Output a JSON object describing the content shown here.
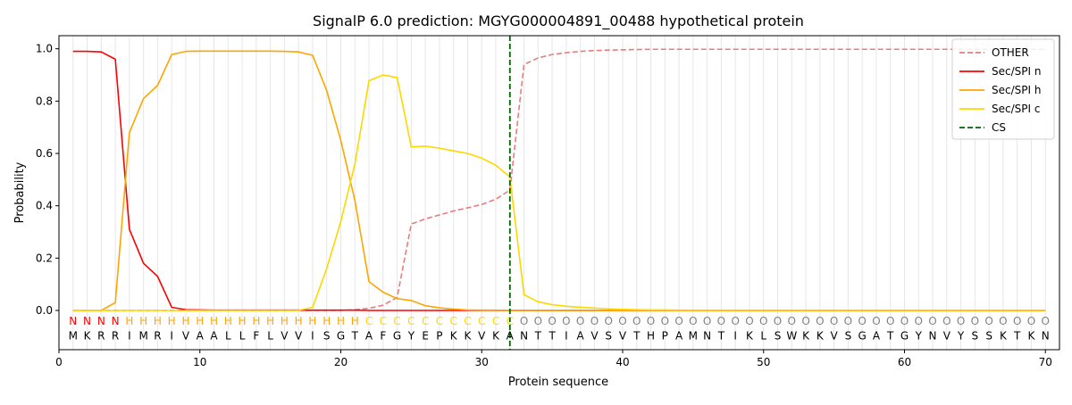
{
  "chart_data": {
    "type": "line",
    "title": "SignalP 6.0 prediction: MGYG000004891_00488 hypothetical protein",
    "xlabel": "Protein sequence",
    "ylabel": "Probability",
    "xlim": [
      0,
      71
    ],
    "ylim": [
      -0.15,
      1.05
    ],
    "x_ticks": [
      0,
      10,
      20,
      30,
      40,
      50,
      60,
      70
    ],
    "y_ticks": [
      0.0,
      0.2,
      0.4,
      0.6,
      0.8,
      1.0
    ],
    "x_tick_labels": [
      "0",
      "10",
      "20",
      "30",
      "40",
      "50",
      "60",
      "70"
    ],
    "y_tick_labels": [
      "0.0",
      "0.2",
      "0.4",
      "0.6",
      "0.8",
      "1.0"
    ],
    "grid": "vertical lines at each residue",
    "legend_position": "top-right",
    "sequence": [
      "M",
      "K",
      "R",
      "R",
      "I",
      "M",
      "R",
      "I",
      "V",
      "A",
      "A",
      "L",
      "L",
      "F",
      "L",
      "V",
      "V",
      "I",
      "S",
      "G",
      "T",
      "A",
      "F",
      "G",
      "Y",
      "E",
      "P",
      "K",
      "K",
      "V",
      "K",
      "A",
      "N",
      "T",
      "T",
      "I",
      "A",
      "V",
      "S",
      "V",
      "T",
      "H",
      "P",
      "A",
      "M",
      "N",
      "T",
      "I",
      "K",
      "L",
      "S",
      "W",
      "K",
      "K",
      "V",
      "S",
      "G",
      "A",
      "T",
      "G",
      "Y",
      "N",
      "V",
      "Y",
      "S",
      "S",
      "K",
      "T",
      "K",
      "N"
    ],
    "labels": [
      "N",
      "N",
      "N",
      "N",
      "H",
      "H",
      "H",
      "H",
      "H",
      "H",
      "H",
      "H",
      "H",
      "H",
      "H",
      "H",
      "H",
      "H",
      "H",
      "H",
      "H",
      "C",
      "C",
      "C",
      "C",
      "C",
      "C",
      "C",
      "C",
      "C",
      "C",
      "C",
      "O",
      "O",
      "O",
      "O",
      "O",
      "O",
      "O",
      "O",
      "O",
      "O",
      "O",
      "O",
      "O",
      "O",
      "O",
      "O",
      "O",
      "O",
      "O",
      "O",
      "O",
      "O",
      "O",
      "O",
      "O",
      "O",
      "O",
      "O",
      "O",
      "O",
      "O",
      "O",
      "O",
      "O",
      "O",
      "O",
      "O",
      "O"
    ],
    "label_colors": {
      "N": "#ff0000",
      "H": "#ffa500",
      "C": "#ffd700",
      "O": "#808080"
    },
    "cleavage_site": 32,
    "cs_color": "#006400",
    "series": [
      {
        "name": "OTHER",
        "color": "#e87c7c",
        "dash": true,
        "values": [
          0.0,
          0.0,
          0.0,
          0.0,
          0.0,
          0.0,
          0.0,
          0.0,
          0.0,
          0.0,
          0.0,
          0.0,
          0.0,
          0.0,
          0.0,
          0.0,
          0.0,
          0.0,
          0.0,
          0.0,
          0.003,
          0.008,
          0.02,
          0.05,
          0.33,
          0.35,
          0.365,
          0.38,
          0.392,
          0.405,
          0.425,
          0.46,
          0.94,
          0.965,
          0.978,
          0.985,
          0.99,
          0.993,
          0.995,
          0.996,
          0.997,
          0.998,
          0.998,
          0.998,
          0.998,
          0.998,
          0.998,
          0.998,
          0.998,
          0.998,
          0.998,
          0.998,
          0.998,
          0.998,
          0.998,
          0.998,
          0.998,
          0.998,
          0.998,
          0.998,
          0.998,
          0.998,
          0.998,
          0.998,
          0.998,
          0.998,
          0.998,
          0.998,
          0.998,
          0.998
        ]
      },
      {
        "name": "Sec/SPI n",
        "color": "#ff0000",
        "dash": false,
        "values": [
          0.99,
          0.99,
          0.988,
          0.96,
          0.31,
          0.18,
          0.13,
          0.012,
          0.003,
          0.002,
          0.001,
          0.001,
          0.001,
          0.001,
          0.001,
          0.001,
          0.001,
          0.001,
          0.001,
          0.001,
          0.001,
          0.0,
          0.0,
          0.0,
          0.0,
          0.0,
          0.0,
          0.0,
          0.0,
          0.0,
          0.0,
          0.0,
          0.0,
          0.0,
          0.0,
          0.0,
          0.0,
          0.0,
          0.0,
          0.0,
          0.0,
          0.0,
          0.0,
          0.0,
          0.0,
          0.0,
          0.0,
          0.0,
          0.0,
          0.0,
          0.0,
          0.0,
          0.0,
          0.0,
          0.0,
          0.0,
          0.0,
          0.0,
          0.0,
          0.0,
          0.0,
          0.0,
          0.0,
          0.0,
          0.0,
          0.0,
          0.0,
          0.0,
          0.0,
          0.0
        ]
      },
      {
        "name": "Sec/SPI h",
        "color": "#ffa500",
        "dash": false,
        "values": [
          0.0,
          0.0,
          0.0,
          0.03,
          0.68,
          0.81,
          0.86,
          0.978,
          0.99,
          0.991,
          0.991,
          0.991,
          0.991,
          0.991,
          0.991,
          0.99,
          0.988,
          0.975,
          0.84,
          0.65,
          0.42,
          0.11,
          0.07,
          0.045,
          0.038,
          0.018,
          0.01,
          0.005,
          0.002,
          0.001,
          0.001,
          0.0,
          0.0,
          0.0,
          0.0,
          0.0,
          0.0,
          0.0,
          0.0,
          0.0,
          0.0,
          0.0,
          0.0,
          0.0,
          0.0,
          0.0,
          0.0,
          0.0,
          0.0,
          0.0,
          0.0,
          0.0,
          0.0,
          0.0,
          0.0,
          0.0,
          0.0,
          0.0,
          0.0,
          0.0,
          0.0,
          0.0,
          0.0,
          0.0,
          0.0,
          0.0,
          0.0,
          0.0,
          0.0,
          0.0
        ]
      },
      {
        "name": "Sec/SPI c",
        "color": "#ffd700",
        "dash": false,
        "values": [
          0.0,
          0.0,
          0.0,
          0.0,
          0.0,
          0.0,
          0.0,
          0.0,
          0.0,
          0.0,
          0.0,
          0.0,
          0.0,
          0.0,
          0.0,
          0.0,
          0.0,
          0.012,
          0.16,
          0.34,
          0.56,
          0.878,
          0.9,
          0.89,
          0.625,
          0.628,
          0.62,
          0.61,
          0.6,
          0.582,
          0.555,
          0.51,
          0.06,
          0.033,
          0.022,
          0.016,
          0.012,
          0.009,
          0.006,
          0.004,
          0.003,
          0.002,
          0.002,
          0.001,
          0.001,
          0.001,
          0.001,
          0.001,
          0.001,
          0.001,
          0.001,
          0.001,
          0.001,
          0.001,
          0.001,
          0.001,
          0.001,
          0.001,
          0.001,
          0.001,
          0.001,
          0.001,
          0.001,
          0.001,
          0.001,
          0.001,
          0.001,
          0.001,
          0.001,
          0.001
        ]
      }
    ],
    "legend": [
      "OTHER",
      "Sec/SPI n",
      "Sec/SPI h",
      "Sec/SPI c",
      "CS"
    ]
  }
}
